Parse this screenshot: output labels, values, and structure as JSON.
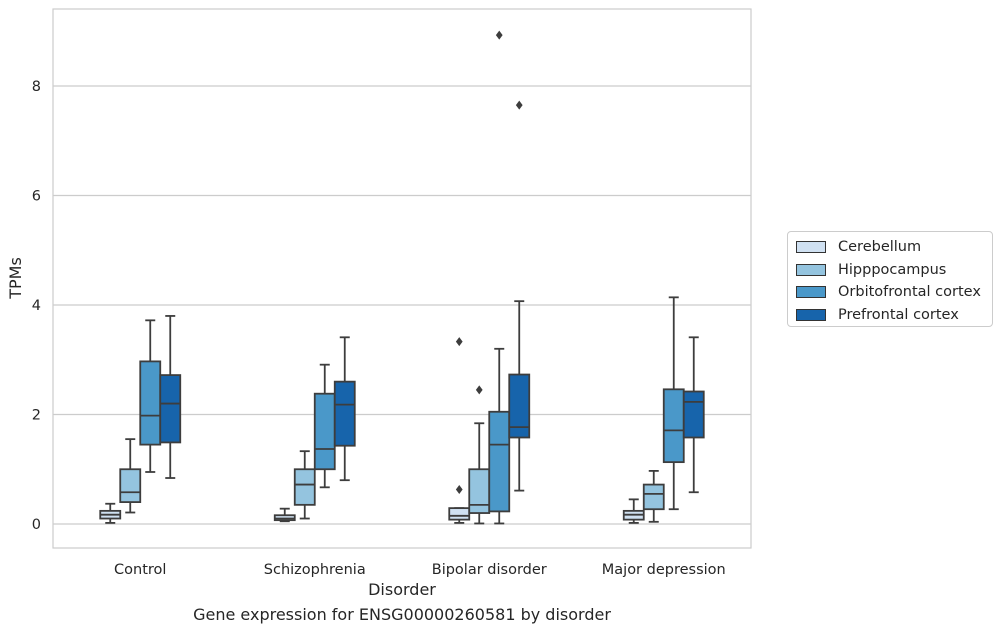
{
  "colors": {
    "Cerebellum": "#d0e1f2",
    "Hipppocampus": "#94c4df",
    "Orbitofrontal cortex": "#4a98c9",
    "Prefrontal cortex": "#1764ab"
  },
  "chart_data": {
    "type": "box",
    "xlabel": "Disorder",
    "ylabel": "TPMs",
    "caption": "Gene expression for ENSG00000260581 by disorder",
    "ylim": [
      -0.45,
      9.45
    ],
    "yticks": [
      0,
      2,
      4,
      6,
      8
    ],
    "grid": true,
    "legend_position": "right",
    "categories": [
      "Control",
      "Schizophrenia",
      "Bipolar disorder",
      "Major depression"
    ],
    "series": [
      {
        "name": "Cerebellum",
        "boxes": [
          {
            "whislo": 0.02,
            "q1": 0.1,
            "med": 0.17,
            "q3": 0.24,
            "whishi": 0.37,
            "fliers": []
          },
          {
            "whislo": 0.05,
            "q1": 0.07,
            "med": 0.1,
            "q3": 0.16,
            "whishi": 0.28,
            "fliers": []
          },
          {
            "whislo": 0.02,
            "q1": 0.08,
            "med": 0.15,
            "q3": 0.29,
            "whishi": 0.29,
            "fliers": [
              0.63,
              3.33
            ]
          },
          {
            "whislo": 0.02,
            "q1": 0.08,
            "med": 0.17,
            "q3": 0.24,
            "whishi": 0.45,
            "fliers": []
          }
        ]
      },
      {
        "name": "Hipppocampus",
        "boxes": [
          {
            "whislo": 0.21,
            "q1": 0.4,
            "med": 0.58,
            "q3": 1.0,
            "whishi": 1.55,
            "fliers": []
          },
          {
            "whislo": 0.1,
            "q1": 0.35,
            "med": 0.72,
            "q3": 1.0,
            "whishi": 1.33,
            "fliers": []
          },
          {
            "whislo": 0.01,
            "q1": 0.2,
            "med": 0.35,
            "q3": 1.0,
            "whishi": 1.84,
            "fliers": [
              2.45
            ]
          },
          {
            "whislo": 0.04,
            "q1": 0.27,
            "med": 0.55,
            "q3": 0.72,
            "whishi": 0.97,
            "fliers": []
          }
        ]
      },
      {
        "name": "Orbitofrontal cortex",
        "boxes": [
          {
            "whislo": 0.95,
            "q1": 1.45,
            "med": 1.98,
            "q3": 2.97,
            "whishi": 3.72,
            "fliers": []
          },
          {
            "whislo": 0.67,
            "q1": 1.0,
            "med": 1.37,
            "q3": 2.38,
            "whishi": 2.91,
            "fliers": []
          },
          {
            "whislo": 0.01,
            "q1": 0.23,
            "med": 1.45,
            "q3": 2.05,
            "whishi": 3.2,
            "fliers": [
              8.93
            ]
          },
          {
            "whislo": 0.27,
            "q1": 1.13,
            "med": 1.71,
            "q3": 2.46,
            "whishi": 4.14,
            "fliers": []
          }
        ]
      },
      {
        "name": "Prefrontal cortex",
        "boxes": [
          {
            "whislo": 0.84,
            "q1": 1.49,
            "med": 2.2,
            "q3": 2.72,
            "whishi": 3.8,
            "fliers": []
          },
          {
            "whislo": 0.8,
            "q1": 1.43,
            "med": 2.18,
            "q3": 2.6,
            "whishi": 3.41,
            "fliers": []
          },
          {
            "whislo": 0.61,
            "q1": 1.58,
            "med": 1.77,
            "q3": 2.73,
            "whishi": 4.07,
            "fliers": [
              7.65
            ]
          },
          {
            "whislo": 0.58,
            "q1": 1.58,
            "med": 2.23,
            "q3": 2.42,
            "whishi": 3.41,
            "fliers": []
          }
        ]
      }
    ]
  }
}
